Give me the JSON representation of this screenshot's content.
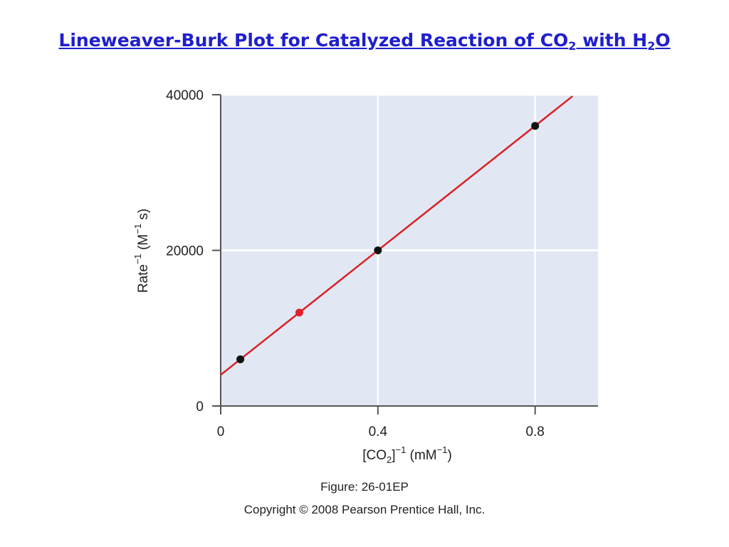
{
  "title": {
    "text": "Lineweaver-Burk Plot for Catalyzed Reaction of CO",
    "sub1": "2",
    "mid": " with H",
    "sub2": "2",
    "end": "O"
  },
  "chart_data": {
    "type": "scatter",
    "xlabel": "[CO2]−1 (mM−1)",
    "ylabel": "Rate−1 (M−1 s)",
    "xlim": [
      0,
      0.96
    ],
    "ylim": [
      0,
      40000
    ],
    "x_ticks": [
      0,
      0.4,
      0.8
    ],
    "x_tick_labels": [
      "0",
      "0.4",
      "0.8"
    ],
    "y_ticks": [
      0,
      20000,
      40000
    ],
    "y_tick_labels": [
      "0",
      "20000",
      "40000"
    ],
    "grid": true,
    "points": [
      {
        "x": 0.05,
        "y": 6000,
        "color": "#111111"
      },
      {
        "x": 0.2,
        "y": 12000,
        "color": "#e0202a"
      },
      {
        "x": 0.4,
        "y": 20000,
        "color": "#111111"
      },
      {
        "x": 0.8,
        "y": 36000,
        "color": "#111111"
      }
    ],
    "fit_line": {
      "slope": 40000,
      "intercept": 4000,
      "x_end": 0.895,
      "color": "#d92027"
    },
    "plot_background": "#e2e8f3"
  },
  "caption": {
    "figure": "Figure: 26-01EP",
    "copyright": "Copyright © 2008 Pearson Prentice Hall, Inc."
  }
}
